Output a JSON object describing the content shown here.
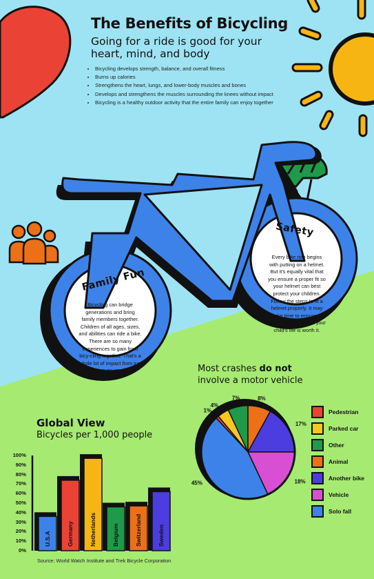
{
  "header": {
    "title": "The Benefits of Bicycling",
    "subtitle": "Going for a ride is good for your heart, mind, and body"
  },
  "benefits": [
    "Bicycling develops strength, balance, and overall fitness",
    "Burns up calories",
    "Strengthens the heart, lungs, and lower-body muscles and bones",
    "Develops and strengthens the muscles surrounding the knees without impact",
    "Bicycling is a healthy outdoor activity that the entire family can enjoy together"
  ],
  "family_fun": {
    "title": "Family Fun",
    "text": "Bicycling can bridge generations and bring family members together. Children of all ages, sizes, and abilities can ride a bike. There are so many experiences to gain from bicy-cling together. That's a whole lot of impact from just hop-ping on your bike."
  },
  "safety": {
    "title": "Safety",
    "text": "Every bike ride begins with putting on a helmet. But it's equally vital that you ensure a proper fit so your helmet can best protect your children. Follow the steps to fit a helmet properly. It may take time to ensure a proper helmet fit, but your child's life is worth it."
  },
  "global_view": {
    "title": "Global View",
    "subtitle": "Bicycles per 1,000 people",
    "source": "Source: World Watch Institute and Trek Bicycle Corporation"
  },
  "crashes": {
    "title_before": "Most crashes ",
    "title_bold": "do not",
    "title_after": "involve a motor vehicle"
  },
  "chart_data": [
    {
      "type": "bar",
      "categories": [
        "U.S.A",
        "Germany",
        "Netherlands",
        "Belgium",
        "Switzerland",
        "Sweden"
      ],
      "values": [
        36,
        74,
        97,
        46,
        47,
        62
      ],
      "colors": [
        "#3d82e8",
        "#ea4335",
        "#f7b513",
        "#1e9a4a",
        "#ec7018",
        "#4b3de0"
      ],
      "ylim": [
        0,
        100
      ],
      "yticks": [
        "0%",
        "10%",
        "20%",
        "30%",
        "40%",
        "50%",
        "60%",
        "70%",
        "80%",
        "90%",
        "100%"
      ]
    },
    {
      "type": "pie",
      "labels": [
        "Pedestrian",
        "Parked car",
        "Other",
        "Animal",
        "Another bike",
        "Vehicle",
        "Solo fall"
      ],
      "values": [
        1,
        4,
        7,
        8,
        17,
        18,
        45
      ],
      "display": [
        "1%",
        "4%",
        "7%",
        "8%",
        "17%",
        "18%",
        "45%"
      ],
      "colors": [
        "#ea4335",
        "#f7c623",
        "#1e9a4a",
        "#ec7018",
        "#4b3de0",
        "#d94fd4",
        "#3d82e8"
      ],
      "legend": "right"
    }
  ]
}
